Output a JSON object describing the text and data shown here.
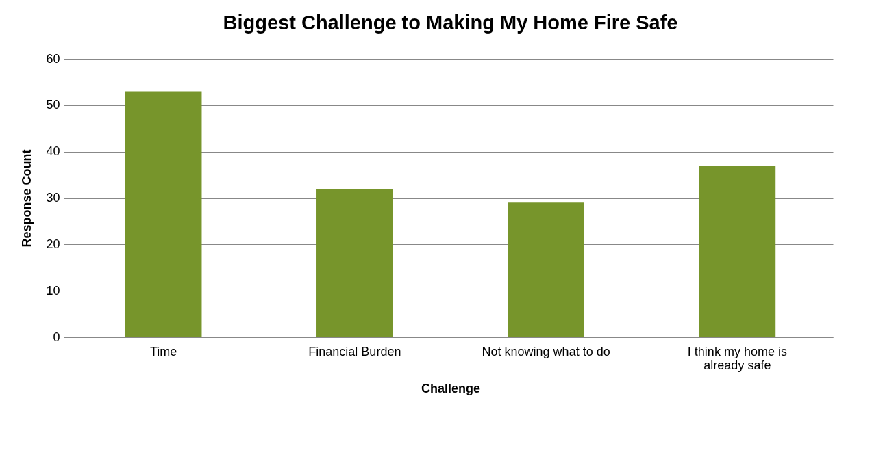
{
  "chart_data": {
    "type": "bar",
    "title": "Biggest Challenge to Making My Home Fire Safe",
    "xlabel": "Challenge",
    "ylabel": "Response Count",
    "categories": [
      "Time",
      "Financial Burden",
      "Not knowing what to do",
      "I think my home is already safe"
    ],
    "values": [
      53,
      32,
      29,
      37
    ],
    "color": "#77952b",
    "ylim": [
      0,
      60
    ],
    "yticks": [
      0,
      10,
      20,
      30,
      40,
      50,
      60
    ],
    "grid": "y"
  }
}
